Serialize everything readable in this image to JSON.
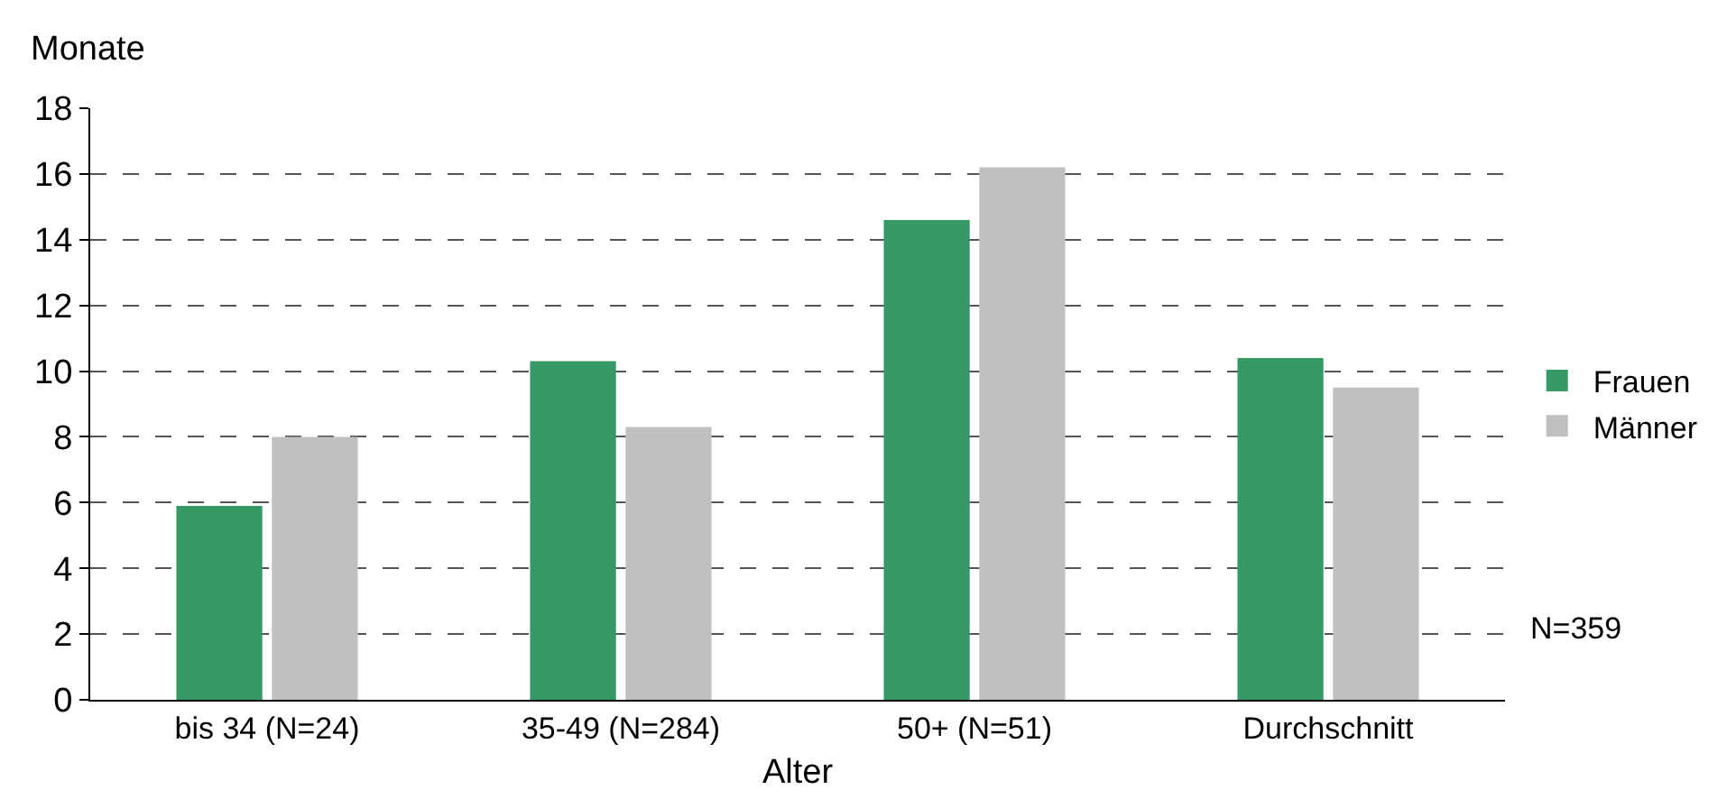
{
  "chart_data": {
    "type": "bar",
    "ylabel": "Monate",
    "xlabel": "Alter",
    "categories": [
      "bis 34 (N=24)",
      "35-49 (N=284)",
      "50+ (N=51)",
      "Durchschnitt"
    ],
    "series": [
      {
        "name": "Frauen",
        "color": "#359a66",
        "values": [
          5.9,
          10.3,
          14.6,
          10.4
        ]
      },
      {
        "name": "Männer",
        "color": "#c0c0c0",
        "values": [
          8.0,
          8.3,
          16.2,
          9.5
        ]
      }
    ],
    "ylim": [
      0,
      18
    ],
    "yticks": [
      0,
      2,
      4,
      6,
      8,
      10,
      12,
      14,
      16,
      18
    ],
    "grid": "y",
    "legend": "right",
    "line_style": "dashed",
    "annotations": [
      "N=359"
    ]
  }
}
